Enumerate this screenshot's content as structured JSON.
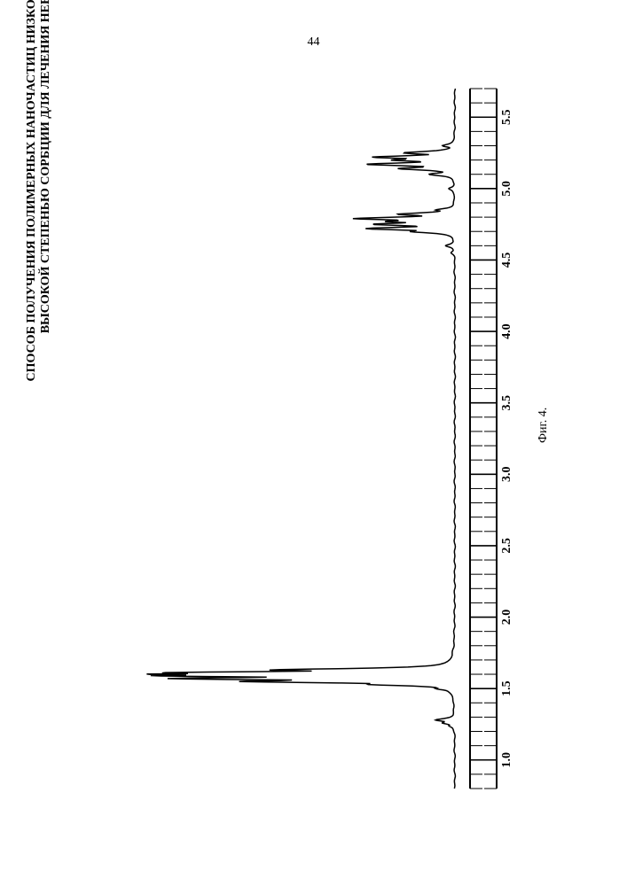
{
  "page_number": "44",
  "title_line1": "СПОСОБ ПОЛУЧЕНИЯ ПОЛИМЕРНЫХ НАНОЧАСТИЦ НИЗКОСИАЛИРОВАННОГО ЭРИТРОПОЭТИНА С",
  "title_line2": "ВЫСОКОЙ СТЕПЕНЬЮ СОРБЦИИ ДЛЯ ЛЕЧЕНИЯ НЕВРОЛОГИЧЕСКИХ ЗАБОЛЕВАНИЙ",
  "figure_caption": "Фиг. 4.",
  "spectrum": {
    "type": "line",
    "orientation": "vertical_ppm_axis_on_right",
    "x_axis_label_values": [
      "5.5",
      "5.0",
      "4.5",
      "4.0",
      "3.5",
      "3.0",
      "2.5",
      "2.0",
      "1.5",
      "1.0"
    ],
    "ppm_min": 0.8,
    "ppm_max": 5.7,
    "intensity_min": 0,
    "intensity_max": 100,
    "baseline_intensity": 2,
    "line_color": "#000000",
    "line_width": 1.5,
    "axis_color": "#000000",
    "axis_line_width": 2,
    "tick_font_size": 14,
    "tick_font_weight": "bold",
    "major_tick_step": 0.5,
    "minor_tick_step": 0.1,
    "peaks": [
      {
        "ppm": 5.3,
        "intensity": 6
      },
      {
        "ppm": 5.25,
        "intensity": 18
      },
      {
        "ppm": 5.22,
        "intensity": 28
      },
      {
        "ppm": 5.2,
        "intensity": 22
      },
      {
        "ppm": 5.17,
        "intensity": 30
      },
      {
        "ppm": 5.14,
        "intensity": 20
      },
      {
        "ppm": 5.1,
        "intensity": 10
      },
      {
        "ppm": 5.0,
        "intensity": 4
      },
      {
        "ppm": 4.85,
        "intensity": 8
      },
      {
        "ppm": 4.82,
        "intensity": 20
      },
      {
        "ppm": 4.79,
        "intensity": 34
      },
      {
        "ppm": 4.77,
        "intensity": 24
      },
      {
        "ppm": 4.75,
        "intensity": 28
      },
      {
        "ppm": 4.72,
        "intensity": 30
      },
      {
        "ppm": 4.7,
        "intensity": 16
      },
      {
        "ppm": 4.6,
        "intensity": 5
      },
      {
        "ppm": 4.55,
        "intensity": 3
      },
      {
        "ppm": 1.7,
        "intensity": 3
      },
      {
        "ppm": 1.65,
        "intensity": 15
      },
      {
        "ppm": 1.63,
        "intensity": 60
      },
      {
        "ppm": 1.61,
        "intensity": 95
      },
      {
        "ppm": 1.6,
        "intensity": 100
      },
      {
        "ppm": 1.59,
        "intensity": 98
      },
      {
        "ppm": 1.57,
        "intensity": 92
      },
      {
        "ppm": 1.55,
        "intensity": 70
      },
      {
        "ppm": 1.53,
        "intensity": 30
      },
      {
        "ppm": 1.5,
        "intensity": 8
      },
      {
        "ppm": 1.45,
        "intensity": 3
      },
      {
        "ppm": 1.28,
        "intensity": 8
      },
      {
        "ppm": 1.26,
        "intensity": 6
      },
      {
        "ppm": 1.24,
        "intensity": 4
      }
    ]
  }
}
